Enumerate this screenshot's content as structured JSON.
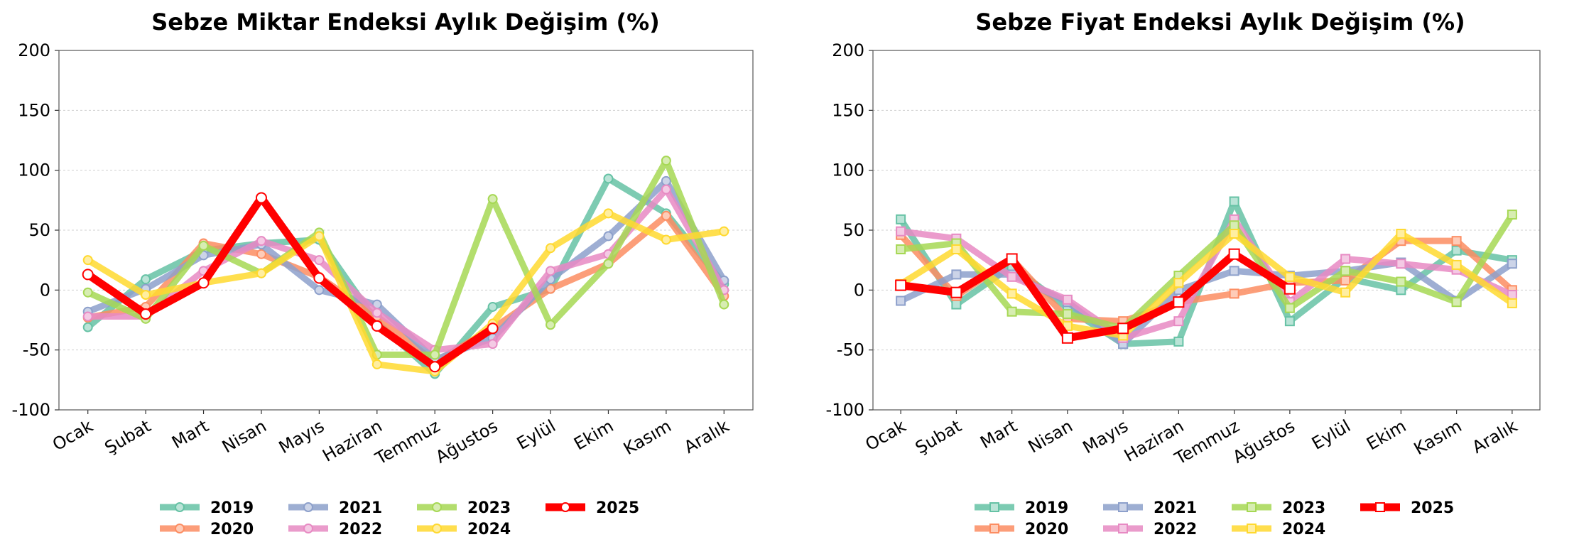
{
  "colors": {
    "2019": "#66c2a5",
    "2020": "#fc8d62",
    "2021": "#8da0cb",
    "2022": "#e78ac3",
    "2023": "#a6d854",
    "2024": "#ffd92f",
    "2025": "#ff0000"
  },
  "chart_data": [
    {
      "type": "line",
      "title": "Sebze Miktar Endeksi Aylık Değişim (%)",
      "marker": "circle",
      "categories": [
        "Ocak",
        "Şubat",
        "Mart",
        "Nisan",
        "Mayıs",
        "Haziran",
        "Temmuz",
        "Ağustos",
        "Eylül",
        "Ekim",
        "Kasım",
        "Aralık"
      ],
      "ylim": [
        -100,
        200
      ],
      "yticks": [
        -100,
        -50,
        0,
        50,
        100,
        150,
        200
      ],
      "grid": true,
      "legend": "bottom",
      "series": [
        {
          "name": "2019",
          "values": [
            -31,
            9,
            33,
            39,
            42,
            -27,
            -70,
            -14,
            1,
            93,
            64,
            5
          ]
        },
        {
          "name": "2020",
          "values": [
            -23,
            -14,
            39,
            30,
            11,
            -22,
            -60,
            -32,
            1,
            22,
            62,
            -5
          ]
        },
        {
          "name": "2021",
          "values": [
            -18,
            1,
            29,
            38,
            0,
            -12,
            -58,
            -40,
            9,
            45,
            91,
            8
          ]
        },
        {
          "name": "2022",
          "values": [
            -22,
            -22,
            16,
            41,
            25,
            -19,
            -50,
            -45,
            16,
            30,
            84,
            0
          ]
        },
        {
          "name": "2023",
          "values": [
            -2,
            -24,
            37,
            14,
            48,
            -54,
            -54,
            76,
            -29,
            22,
            108,
            -12
          ]
        },
        {
          "name": "2024",
          "values": [
            25,
            -4,
            6,
            14,
            45,
            -62,
            -68,
            -28,
            35,
            64,
            42,
            49
          ]
        },
        {
          "name": "2025",
          "values": [
            13,
            -20,
            6,
            77,
            10,
            -30,
            -64,
            -32,
            null,
            null,
            null,
            null
          ]
        }
      ]
    },
    {
      "type": "line",
      "title": "Sebze Fiyat Endeksi Aylık Değişim (%)",
      "marker": "square",
      "categories": [
        "Ocak",
        "Şubat",
        "Mart",
        "Nisan",
        "Mayıs",
        "Haziran",
        "Temmuz",
        "Ağustos",
        "Eylül",
        "Ekim",
        "Kasım",
        "Aralık"
      ],
      "ylim": [
        -100,
        200
      ],
      "yticks": [
        -100,
        -50,
        0,
        50,
        100,
        150,
        200
      ],
      "grid": true,
      "legend": "bottom",
      "series": [
        {
          "name": "2019",
          "values": [
            59,
            -12,
            20,
            -15,
            -45,
            -43,
            74,
            -26,
            10,
            0,
            33,
            25
          ]
        },
        {
          "name": "2020",
          "values": [
            46,
            -5,
            26,
            -24,
            -26,
            -10,
            -3,
            6,
            8,
            41,
            41,
            0
          ]
        },
        {
          "name": "2021",
          "values": [
            -9,
            13,
            13,
            -10,
            -45,
            0,
            16,
            12,
            16,
            23,
            -9,
            22
          ]
        },
        {
          "name": "2022",
          "values": [
            49,
            43,
            11,
            -8,
            -40,
            -26,
            59,
            -10,
            26,
            22,
            17,
            -4
          ]
        },
        {
          "name": "2023",
          "values": [
            34,
            39,
            -18,
            -20,
            -32,
            12,
            54,
            -15,
            16,
            7,
            -10,
            63
          ]
        },
        {
          "name": "2024",
          "values": [
            5,
            34,
            -3,
            -30,
            -38,
            6,
            47,
            11,
            -2,
            47,
            21,
            -11
          ]
        },
        {
          "name": "2025",
          "values": [
            4,
            -2,
            26,
            -40,
            -32,
            -10,
            30,
            1,
            null,
            null,
            null,
            null
          ]
        }
      ]
    }
  ]
}
